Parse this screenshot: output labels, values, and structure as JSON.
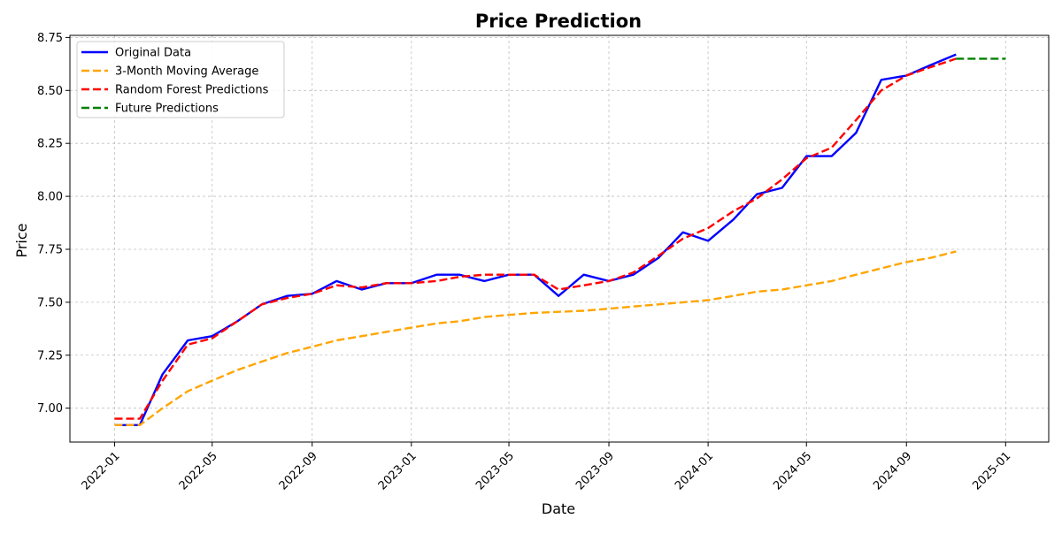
{
  "chart_data": {
    "type": "line",
    "title": "Price Prediction",
    "xlabel": "Date",
    "ylabel": "Price",
    "x_ticks": [
      "2022-01",
      "2022-05",
      "2022-09",
      "2023-01",
      "2023-05",
      "2023-09",
      "2024-01",
      "2024-05",
      "2024-09",
      "2025-01"
    ],
    "y_ticks": [
      "7.00",
      "7.25",
      "7.50",
      "7.75",
      "8.00",
      "8.25",
      "8.50",
      "8.75"
    ],
    "xlim": [
      "2021-11-07",
      "2025-02-23"
    ],
    "ylim": [
      6.84,
      8.76
    ],
    "grid": true,
    "legend_position": "top-left",
    "series": [
      {
        "name": "Original Data",
        "color": "#0000ff",
        "style": "solid",
        "x": [
          "2022-01-01",
          "2022-02-01",
          "2022-03-01",
          "2022-04-01",
          "2022-05-01",
          "2022-06-01",
          "2022-07-01",
          "2022-08-01",
          "2022-09-01",
          "2022-10-01",
          "2022-11-01",
          "2022-12-01",
          "2023-01-01",
          "2023-02-01",
          "2023-03-01",
          "2023-04-01",
          "2023-05-01",
          "2023-06-01",
          "2023-07-01",
          "2023-08-01",
          "2023-09-01",
          "2023-10-01",
          "2023-11-01",
          "2023-12-01",
          "2024-01-01",
          "2024-02-01",
          "2024-03-01",
          "2024-04-01",
          "2024-05-01",
          "2024-06-01",
          "2024-07-01",
          "2024-08-01",
          "2024-09-01",
          "2024-10-01",
          "2024-11-01"
        ],
        "y": [
          6.92,
          6.92,
          7.16,
          7.32,
          7.34,
          7.41,
          7.49,
          7.53,
          7.54,
          7.6,
          7.56,
          7.59,
          7.59,
          7.63,
          7.63,
          7.6,
          7.63,
          7.63,
          7.53,
          7.63,
          7.6,
          7.63,
          7.71,
          7.83,
          7.79,
          7.89,
          8.01,
          8.04,
          8.19,
          8.19,
          8.3,
          8.55,
          8.57,
          8.62,
          8.67
        ]
      },
      {
        "name": "3-Month Moving Average",
        "color": "#ffa500",
        "style": "dashed",
        "x": [
          "2022-01-01",
          "2022-02-01",
          "2022-03-01",
          "2022-04-01",
          "2022-05-01",
          "2022-06-01",
          "2022-07-01",
          "2022-08-01",
          "2022-09-01",
          "2022-10-01",
          "2022-11-01",
          "2022-12-01",
          "2023-01-01",
          "2023-02-01",
          "2023-03-01",
          "2023-04-01",
          "2023-05-01",
          "2023-06-01",
          "2023-07-01",
          "2023-08-01",
          "2023-09-01",
          "2023-10-01",
          "2023-11-01",
          "2023-12-01",
          "2024-01-01",
          "2024-02-01",
          "2024-03-01",
          "2024-04-01",
          "2024-05-01",
          "2024-06-01",
          "2024-07-01",
          "2024-08-01",
          "2024-09-01",
          "2024-10-01",
          "2024-11-01"
        ],
        "y": [
          6.92,
          6.92,
          7.0,
          7.08,
          7.13,
          7.18,
          7.22,
          7.26,
          7.29,
          7.32,
          7.34,
          7.36,
          7.38,
          7.4,
          7.41,
          7.43,
          7.44,
          7.45,
          7.455,
          7.46,
          7.47,
          7.48,
          7.49,
          7.5,
          7.51,
          7.53,
          7.55,
          7.56,
          7.58,
          7.6,
          7.63,
          7.66,
          7.69,
          7.71,
          7.74
        ]
      },
      {
        "name": "Random Forest Predictions",
        "color": "#ff0000",
        "style": "dashed",
        "x": [
          "2022-01-01",
          "2022-02-01",
          "2022-03-01",
          "2022-04-01",
          "2022-05-01",
          "2022-06-01",
          "2022-07-01",
          "2022-08-01",
          "2022-09-01",
          "2022-10-01",
          "2022-11-01",
          "2022-12-01",
          "2023-01-01",
          "2023-02-01",
          "2023-03-01",
          "2023-04-01",
          "2023-05-01",
          "2023-06-01",
          "2023-07-01",
          "2023-08-01",
          "2023-09-01",
          "2023-10-01",
          "2023-11-01",
          "2023-12-01",
          "2024-01-01",
          "2024-02-01",
          "2024-03-01",
          "2024-04-01",
          "2024-05-01",
          "2024-06-01",
          "2024-07-01",
          "2024-08-01",
          "2024-09-01",
          "2024-10-01",
          "2024-11-01"
        ],
        "y": [
          6.95,
          6.95,
          7.13,
          7.3,
          7.33,
          7.41,
          7.49,
          7.52,
          7.54,
          7.58,
          7.57,
          7.59,
          7.59,
          7.6,
          7.62,
          7.63,
          7.63,
          7.63,
          7.56,
          7.58,
          7.6,
          7.64,
          7.72,
          7.8,
          7.85,
          7.93,
          7.99,
          8.08,
          8.18,
          8.23,
          8.36,
          8.5,
          8.57,
          8.61,
          8.65
        ]
      },
      {
        "name": "Future Predictions",
        "color": "#008000",
        "style": "dashed",
        "x": [
          "2024-11-01",
          "2024-12-01",
          "2025-01-01"
        ],
        "y": [
          8.65,
          8.65,
          8.65
        ]
      }
    ]
  }
}
